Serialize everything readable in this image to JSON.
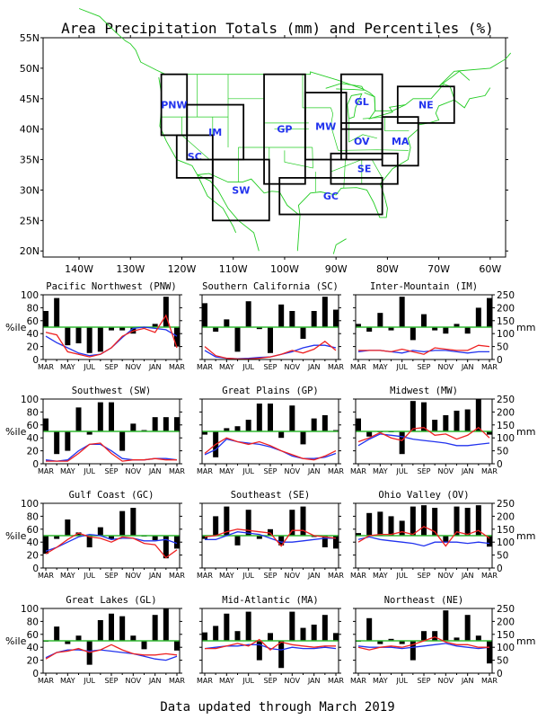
{
  "title": "Area Precipitation Totals (mm) and Percentiles (%)",
  "footer": "Data updated through March 2019",
  "colors": {
    "coast": "#22cc22",
    "percentile_line": "#33bb33",
    "actual": "#ee2222",
    "normal": "#2233ee",
    "region_label": "#2233ee",
    "bar": "#000000"
  },
  "map": {
    "lat_labels": [
      "55N",
      "50N",
      "45N",
      "40N",
      "35N",
      "30N",
      "25N",
      "20N"
    ],
    "lon_labels": [
      "140W",
      "130W",
      "120W",
      "110W",
      "100W",
      "90W",
      "80W",
      "70W",
      "60W"
    ],
    "regions": [
      {
        "code": "PNW",
        "lon": [
          -124,
          -119
        ],
        "lat": [
          39,
          49
        ]
      },
      {
        "code": "SC",
        "lon": [
          -121,
          -114
        ],
        "lat": [
          32,
          39
        ]
      },
      {
        "code": "IM",
        "lon": [
          -119,
          -108
        ],
        "lat": [
          35,
          44
        ]
      },
      {
        "code": "SW",
        "lon": [
          -114,
          -103
        ],
        "lat": [
          25,
          35
        ]
      },
      {
        "code": "GP",
        "lon": [
          -104,
          -96
        ],
        "lat": [
          31,
          49
        ]
      },
      {
        "code": "MW",
        "lon": [
          -96,
          -88
        ],
        "lat": [
          35,
          46
        ]
      },
      {
        "code": "GL",
        "lon": [
          -89,
          -81
        ],
        "lat": [
          40,
          49
        ]
      },
      {
        "code": "OV",
        "lon": [
          -89,
          -81
        ],
        "lat": [
          35,
          41
        ]
      },
      {
        "code": "SE",
        "lon": [
          -91,
          -78
        ],
        "lat": [
          31,
          36
        ]
      },
      {
        "code": "GC",
        "lon": [
          -101,
          -81
        ],
        "lat": [
          26,
          32
        ]
      },
      {
        "code": "MA",
        "lon": [
          -81,
          -74
        ],
        "lat": [
          34,
          42
        ]
      },
      {
        "code": "NE",
        "lon": [
          -78,
          -67
        ],
        "lat": [
          41,
          47
        ]
      }
    ]
  },
  "axes": {
    "left_label": "%ile",
    "right_label": "mm",
    "left_ticks": [
      "0",
      "20",
      "40",
      "60",
      "80",
      "100"
    ],
    "right_ticks": [
      "0",
      "50",
      "100",
      "150",
      "200",
      "250"
    ],
    "month_labels": [
      "MAR",
      "MAY",
      "JUL",
      "SEP",
      "NOV",
      "JAN",
      "MAR"
    ]
  },
  "chart_data": [
    {
      "type": "bar",
      "title": "Pacific Northwest (PNW)",
      "months": 13,
      "percentiles": [
        75,
        95,
        22,
        25,
        10,
        12,
        45,
        45,
        40,
        50,
        55,
        97,
        20
      ],
      "actual_mm": [
        105,
        95,
        30,
        20,
        10,
        20,
        45,
        90,
        110,
        120,
        105,
        170,
        45
      ],
      "normal_mm": [
        90,
        65,
        45,
        25,
        15,
        20,
        45,
        85,
        120,
        125,
        120,
        115,
        90
      ]
    },
    {
      "type": "bar",
      "title": "Southern California (SC)",
      "months": 13,
      "percentiles": [
        87,
        43,
        62,
        12,
        90,
        47,
        10,
        85,
        75,
        32,
        75,
        97,
        77
      ],
      "actual_mm": [
        50,
        15,
        5,
        2,
        2,
        5,
        10,
        20,
        35,
        25,
        40,
        70,
        35
      ],
      "normal_mm": [
        35,
        10,
        5,
        3,
        5,
        8,
        10,
        20,
        30,
        45,
        55,
        55,
        45
      ]
    },
    {
      "type": "bar",
      "title": "Inter-Mountain (IM)",
      "months": 13,
      "percentiles": [
        55,
        43,
        72,
        45,
        97,
        30,
        70,
        45,
        40,
        55,
        40,
        80,
        95
      ],
      "actual_mm": [
        35,
        35,
        35,
        30,
        40,
        30,
        20,
        45,
        40,
        35,
        35,
        55,
        50
      ],
      "normal_mm": [
        30,
        35,
        35,
        30,
        25,
        35,
        30,
        35,
        35,
        30,
        25,
        30,
        30
      ]
    },
    {
      "type": "bar",
      "title": "Southwest (SW)",
      "months": 13,
      "percentiles": [
        70,
        15,
        20,
        87,
        45,
        95,
        95,
        20,
        62,
        52,
        72,
        72,
        72
      ],
      "actual_mm": [
        10,
        10,
        10,
        40,
        75,
        80,
        40,
        10,
        15,
        15,
        20,
        15,
        15
      ],
      "normal_mm": [
        15,
        10,
        15,
        50,
        75,
        75,
        50,
        20,
        15,
        15,
        20,
        20,
        15
      ]
    },
    {
      "type": "bar",
      "title": "Great Plains (GP)",
      "months": 13,
      "percentiles": [
        45,
        10,
        55,
        58,
        68,
        93,
        93,
        40,
        90,
        30,
        70,
        75,
        52
      ],
      "actual_mm": [
        40,
        75,
        100,
        85,
        75,
        85,
        70,
        50,
        35,
        20,
        15,
        30,
        50
      ],
      "normal_mm": [
        35,
        55,
        95,
        85,
        80,
        75,
        65,
        50,
        30,
        20,
        20,
        25,
        40
      ]
    },
    {
      "type": "bar",
      "title": "Midwest (MW)",
      "months": 13,
      "percentiles": [
        70,
        42,
        50,
        50,
        15,
        97,
        95,
        68,
        75,
        82,
        84,
        100,
        45
      ],
      "actual_mm": [
        85,
        100,
        120,
        100,
        90,
        135,
        140,
        110,
        115,
        95,
        110,
        140,
        100
      ],
      "normal_mm": [
        70,
        95,
        115,
        110,
        105,
        95,
        90,
        85,
        80,
        70,
        70,
        75,
        80
      ]
    },
    {
      "type": "bar",
      "title": "Gulf Coast (GC)",
      "months": 13,
      "percentiles": [
        22,
        45,
        75,
        55,
        32,
        63,
        45,
        88,
        93,
        50,
        43,
        15,
        30
      ],
      "actual_mm": [
        55,
        80,
        110,
        135,
        120,
        115,
        100,
        120,
        115,
        95,
        90,
        40,
        70
      ],
      "normal_mm": [
        65,
        80,
        100,
        120,
        130,
        125,
        110,
        115,
        115,
        105,
        105,
        110,
        95
      ]
    },
    {
      "type": "bar",
      "title": "Southeast (SE)",
      "months": 13,
      "percentiles": [
        45,
        80,
        95,
        35,
        90,
        45,
        60,
        35,
        90,
        95,
        48,
        32,
        30
      ],
      "actual_mm": [
        120,
        125,
        140,
        150,
        145,
        140,
        135,
        85,
        145,
        145,
        125,
        120,
        115
      ],
      "normal_mm": [
        110,
        110,
        125,
        140,
        135,
        130,
        115,
        100,
        100,
        105,
        110,
        115,
        115
      ]
    },
    {
      "type": "bar",
      "title": "Ohio Valley (OV)",
      "months": 13,
      "percentiles": [
        54,
        85,
        87,
        80,
        73,
        95,
        97,
        93,
        40,
        95,
        93,
        97,
        33
      ],
      "actual_mm": [
        100,
        125,
        130,
        130,
        140,
        130,
        160,
        140,
        85,
        140,
        130,
        145,
        115
      ],
      "normal_mm": [
        110,
        120,
        110,
        105,
        100,
        95,
        85,
        100,
        100,
        100,
        95,
        100,
        95
      ]
    },
    {
      "type": "bar",
      "title": "Great Lakes (GL)",
      "months": 13,
      "percentiles": [
        50,
        72,
        45,
        58,
        13,
        82,
        92,
        88,
        58,
        37,
        90,
        100,
        35
      ],
      "actual_mm": [
        55,
        80,
        85,
        95,
        80,
        90,
        110,
        90,
        75,
        70,
        70,
        75,
        70
      ],
      "normal_mm": [
        60,
        80,
        90,
        90,
        85,
        90,
        85,
        80,
        75,
        65,
        55,
        50,
        65
      ]
    },
    {
      "type": "bar",
      "title": "Mid-Atlantic (MA)",
      "months": 13,
      "percentiles": [
        63,
        73,
        92,
        65,
        95,
        20,
        62,
        8,
        95,
        70,
        75,
        90,
        62
      ],
      "actual_mm": [
        95,
        95,
        105,
        115,
        105,
        130,
        90,
        120,
        110,
        105,
        100,
        105,
        105
      ],
      "normal_mm": [
        95,
        100,
        105,
        105,
        110,
        110,
        95,
        90,
        100,
        95,
        95,
        100,
        95
      ]
    },
    {
      "type": "bar",
      "title": "Northeast (NE)",
      "months": 13,
      "percentiles": [
        50,
        85,
        45,
        53,
        45,
        20,
        65,
        65,
        97,
        55,
        90,
        58,
        15
      ],
      "actual_mm": [
        100,
        90,
        100,
        105,
        100,
        110,
        125,
        140,
        120,
        110,
        110,
        100,
        100
      ],
      "normal_mm": [
        105,
        100,
        100,
        100,
        95,
        100,
        105,
        110,
        115,
        105,
        100,
        95,
        100
      ]
    }
  ]
}
